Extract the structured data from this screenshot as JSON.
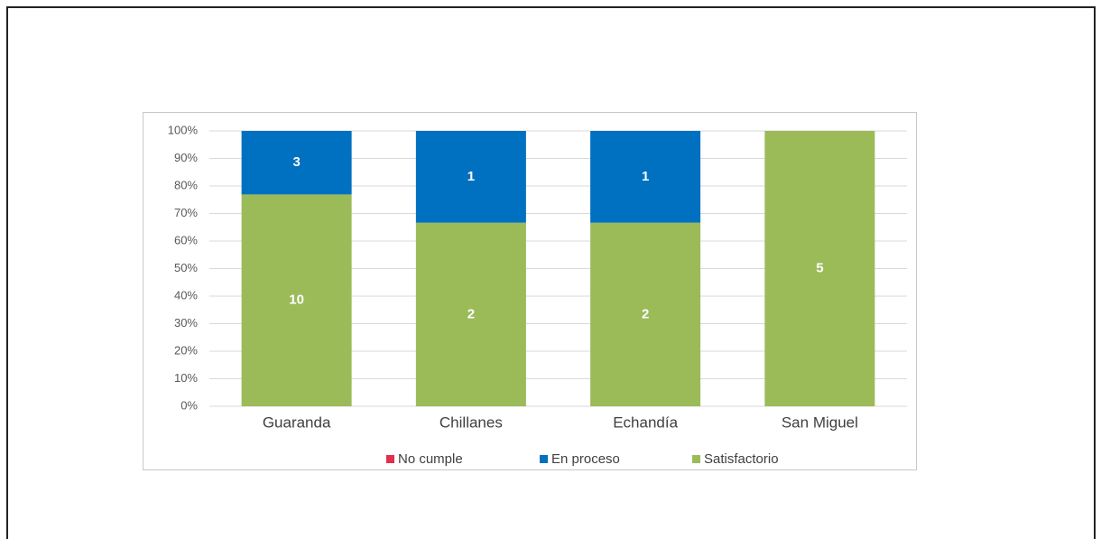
{
  "chart_data": {
    "type": "bar",
    "stacked": "percent",
    "categories": [
      "Guaranda",
      "Chillanes",
      "Echandía",
      "San Miguel"
    ],
    "series": [
      {
        "name": "No cumple",
        "color": "#e0304e",
        "values": [
          0,
          0,
          0,
          0
        ]
      },
      {
        "name": "En proceso",
        "color": "#0070c0",
        "values": [
          3,
          1,
          1,
          0
        ]
      },
      {
        "name": "Satisfactorio",
        "color": "#9bbb59",
        "values": [
          10,
          2,
          2,
          5
        ]
      }
    ],
    "ylim": [
      0,
      100
    ],
    "yticks": [
      {
        "value": 0,
        "label": "0%"
      },
      {
        "value": 10,
        "label": "10%"
      },
      {
        "value": 20,
        "label": "20%"
      },
      {
        "value": 30,
        "label": "30%"
      },
      {
        "value": 40,
        "label": "40%"
      },
      {
        "value": 50,
        "label": "50%"
      },
      {
        "value": 60,
        "label": "60%"
      },
      {
        "value": 70,
        "label": "70%"
      },
      {
        "value": 80,
        "label": "80%"
      },
      {
        "value": 90,
        "label": "90%"
      },
      {
        "value": 100,
        "label": "100%"
      }
    ],
    "grid": true,
    "legend": "bottom"
  }
}
